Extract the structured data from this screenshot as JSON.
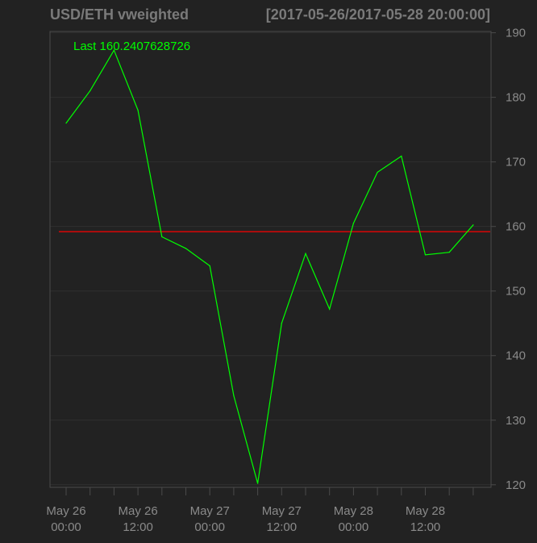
{
  "chart_data": {
    "type": "line",
    "title": "USD/ETH vweighted",
    "date_range": "[2017-05-26/2017-05-28 20:00:00]",
    "last_label": "Last 160.2407628726",
    "xlabel": "",
    "ylabel": "",
    "ylim": [
      119.6,
      190.2
    ],
    "y_ticks": [
      120,
      130,
      140,
      150,
      160,
      170,
      180,
      190
    ],
    "y_axis_side": "right",
    "grid": true,
    "x": [
      "2017-05-26 00:00",
      "2017-05-26 04:00",
      "2017-05-26 08:00",
      "2017-05-26 12:00",
      "2017-05-26 16:00",
      "2017-05-26 20:00",
      "2017-05-27 00:00",
      "2017-05-27 04:00",
      "2017-05-27 08:00",
      "2017-05-27 12:00",
      "2017-05-27 16:00",
      "2017-05-27 20:00",
      "2017-05-28 00:00",
      "2017-05-28 04:00",
      "2017-05-28 08:00",
      "2017-05-28 12:00",
      "2017-05-28 16:00",
      "2017-05-28 20:00"
    ],
    "x_tick_labels": [
      [
        "May 26",
        "00:00"
      ],
      [
        "May 26",
        "12:00"
      ],
      [
        "May 27",
        "00:00"
      ],
      [
        "May 27",
        "12:00"
      ],
      [
        "May 28",
        "00:00"
      ],
      [
        "May 28",
        "12:00"
      ]
    ],
    "series": [
      {
        "values": [
          176.0,
          181.0,
          187.3,
          178.0,
          158.4,
          156.6,
          153.9,
          133.8,
          120.2,
          145.0,
          155.8,
          147.2,
          160.5,
          168.4,
          170.9,
          155.6,
          156.0,
          160.24
        ],
        "color": "#00ff00"
      }
    ],
    "reference_line": {
      "value": 159.2,
      "color": "#ff0000"
    },
    "colors": {
      "background": "#222222",
      "grid": "#2f2f2f",
      "axis": "#4a4a4a",
      "text": "#8a8a8a",
      "title": "#7a7a7a",
      "series": "#00ff00",
      "last_label": "#00ff00",
      "reference": "#ff0000"
    }
  }
}
